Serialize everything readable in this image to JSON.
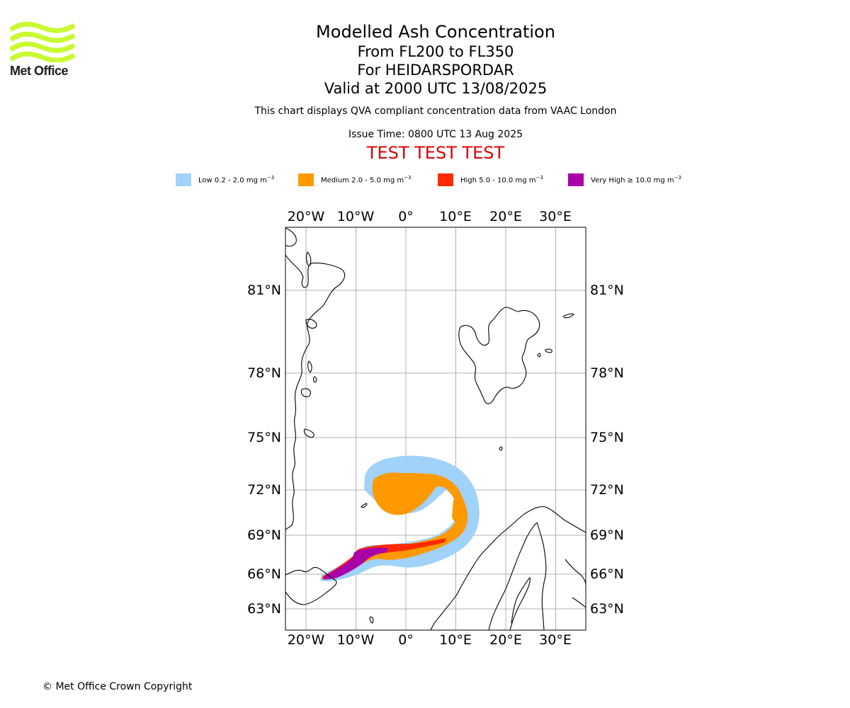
{
  "logo": {
    "text": "Met Office",
    "color": "#c8fa32"
  },
  "titles": {
    "main": "Modelled Ash Concentration",
    "levels": "From FL200 to FL350",
    "volcano": "For HEIDARSPORDAR",
    "valid": "Valid at 2000 UTC 13/08/2025",
    "note": "This chart displays QVA compliant concentration data from VAAC London",
    "issue": "Issue Time: 0800 UTC 13 Aug 2025",
    "test": "TEST TEST TEST"
  },
  "legend": [
    {
      "label": "Low 0.2 - 2.0 mg m",
      "color": "#a0d2fa"
    },
    {
      "label": "Medium 2.0 - 5.0 mg m",
      "color": "#ff9900"
    },
    {
      "label": "High 5.0 - 10.0 mg m",
      "color": "#ff2a00"
    },
    {
      "label": "Very High ≥ 10.0 mg m",
      "color": "#aa00aa"
    }
  ],
  "legend_unit_exponent": "−3",
  "map": {
    "lon_labels": [
      "20°W",
      "10°W",
      "0°",
      "10°E",
      "20°E",
      "30°E"
    ],
    "lat_labels": [
      "81°N",
      "78°N",
      "75°N",
      "72°N",
      "69°N",
      "66°N",
      "63°N"
    ],
    "lon_values": [
      -20,
      -10,
      0,
      10,
      20,
      30
    ],
    "lat_values": [
      81,
      78,
      75,
      72,
      69,
      66,
      63
    ]
  },
  "copyright": "© Met Office Crown Copyright"
}
